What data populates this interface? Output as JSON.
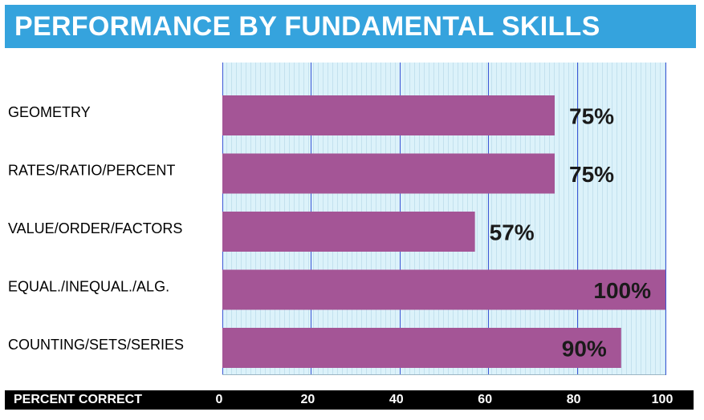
{
  "header": {
    "title": "PERFORMANCE BY FUNDAMENTAL SKILLS"
  },
  "colors": {
    "title_bg": "#35a3dd",
    "bar": "#a45596",
    "plot_bg": "#dcf2fa",
    "gridline": "#3b57d6",
    "footer_bg": "#000000"
  },
  "chart_data": {
    "type": "bar",
    "orientation": "horizontal",
    "title": "PERFORMANCE BY FUNDAMENTAL SKILLS",
    "xlabel": "PERCENT CORRECT",
    "ylabel": "",
    "xlim": [
      0,
      100
    ],
    "xticks": [
      0,
      20,
      40,
      60,
      80,
      100
    ],
    "xtick_labels": [
      "0",
      "20",
      "40",
      "60",
      "80",
      "100"
    ],
    "grid": true,
    "categories": [
      "GEOMETRY",
      "RATES/RATIO/PERCENT",
      "VALUE/ORDER/FACTORS",
      "EQUAL./INEQUAL./ALG.",
      "COUNTING/SETS/SERIES"
    ],
    "values": [
      75,
      75,
      57,
      100,
      90
    ],
    "value_labels": [
      "75%",
      "75%",
      "57%",
      "100%",
      "90%"
    ]
  }
}
